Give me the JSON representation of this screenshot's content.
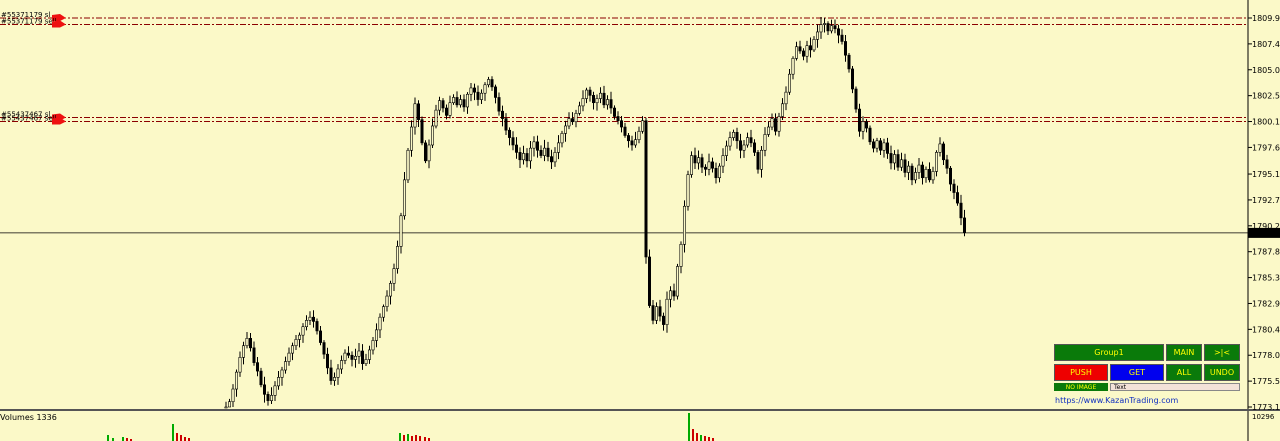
{
  "chart_data": {
    "type": "candlestick",
    "price_ticks": [
      "1809.92",
      "1807.47",
      "1805.02",
      "1802.57",
      "1800.12",
      "1797.67",
      "1795.15",
      "1792.70",
      "1790.25",
      "1787.80",
      "1785.35",
      "1782.90",
      "1780.45",
      "1778.00",
      "1775.55",
      "1773.10"
    ],
    "price_range": [
      1773.1,
      1809.92
    ],
    "current_price": "1789.58",
    "close_series": [
      1773.1,
      1773.6,
      1774.8,
      1776.4,
      1777.8,
      1778.9,
      1779.6,
      1778.7,
      1777.3,
      1776.5,
      1775.2,
      1774.3,
      1773.7,
      1774.2,
      1775.1,
      1775.9,
      1776.6,
      1777.4,
      1778.2,
      1778.9,
      1779.5,
      1779.9,
      1780.7,
      1781.3,
      1781.6,
      1781.2,
      1780.3,
      1779.2,
      1778.1,
      1776.8,
      1775.6,
      1775.9,
      1776.7,
      1777.5,
      1778.2,
      1778.0,
      1777.6,
      1777.9,
      1778.4,
      1777.2,
      1777.6,
      1778.5,
      1779.4,
      1780.4,
      1781.6,
      1782.6,
      1783.6,
      1784.8,
      1786.2,
      1788.3,
      1791.2,
      1794.6,
      1797.4,
      1799.6,
      1801.8,
      1800.3,
      1798.1,
      1796.4,
      1797.9,
      1799.7,
      1801.2,
      1802.1,
      1801.4,
      1800.7,
      1801.9,
      1802.4,
      1801.7,
      1802.2,
      1801.5,
      1802.7,
      1803.3,
      1802.9,
      1802.2,
      1802.8,
      1803.6,
      1804.1,
      1803.4,
      1802.4,
      1801.1,
      1800.4,
      1799.3,
      1798.6,
      1797.9,
      1797.2,
      1796.5,
      1797.1,
      1796.4,
      1797.6,
      1798.2,
      1797.4,
      1796.9,
      1797.6,
      1796.8,
      1796.3,
      1797.2,
      1798.1,
      1799.0,
      1799.7,
      1800.4,
      1800.1,
      1800.9,
      1801.6,
      1802.3,
      1803.1,
      1802.6,
      1801.9,
      1802.3,
      1802.8,
      1801.7,
      1802.2,
      1801.4,
      1800.6,
      1800.2,
      1799.6,
      1798.8,
      1798.3,
      1797.9,
      1798.4,
      1799.2,
      1800.2,
      1787.3,
      1782.7,
      1781.3,
      1782.6,
      1781.7,
      1780.9,
      1783.3,
      1784.1,
      1783.6,
      1786.4,
      1788.5,
      1792.1,
      1795.1,
      1796.9,
      1796.2,
      1796.7,
      1795.8,
      1795.6,
      1796.3,
      1795.7,
      1794.8,
      1795.9,
      1796.9,
      1797.8,
      1798.6,
      1799.1,
      1798.3,
      1797.4,
      1797.9,
      1798.6,
      1798.1,
      1797.2,
      1795.6,
      1797.4,
      1798.9,
      1799.6,
      1800.4,
      1799.2,
      1800.6,
      1801.8,
      1802.9,
      1804.6,
      1806.1,
      1807.2,
      1806.8,
      1806.3,
      1807.3,
      1806.9,
      1807.9,
      1808.6,
      1809.3,
      1809.4,
      1808.7,
      1809.2,
      1808.9,
      1808.3,
      1807.7,
      1806.4,
      1805.1,
      1803.2,
      1801.3,
      1799.2,
      1800.1,
      1799.5,
      1798.2,
      1797.6,
      1798.3,
      1797.4,
      1798.1,
      1797.1,
      1796.2,
      1797.0,
      1795.8,
      1796.5,
      1795.3,
      1795.9,
      1794.6,
      1795.3,
      1796.0,
      1794.8,
      1795.6,
      1794.6,
      1795.4,
      1797.2,
      1798.0,
      1796.5,
      1795.7,
      1794.2,
      1793.4,
      1792.4,
      1791.0,
      1789.6
    ],
    "volumes_label": "Volumes 1336",
    "volumes_scale": "10296",
    "orders": [
      {
        "label": "#55371179 sl",
        "price": 1809.92,
        "color": "#cc0000"
      },
      {
        "label": "#55371179 sell",
        "price": 1809.3,
        "color": "#cc0000"
      },
      {
        "label": "#55437467 sl",
        "price": 1800.5,
        "color": "#cc0000"
      },
      {
        "label": "#55437467 sell",
        "price": 1800.12,
        "color": "#cc0000"
      }
    ],
    "colors": {
      "background": "#fbf9c8",
      "candle": "#000000",
      "level_line": "#8b0000",
      "vol_up": "#00aa00",
      "vol_down": "#cc0000"
    }
  },
  "panel": {
    "group_label": "Group1",
    "main_label": "MAIN",
    "skip_label": ">|<",
    "push_label": "PUSH",
    "get_label": "GET",
    "all_label": "ALL",
    "undo_label": "UNDO",
    "noimage_label": "NO IMAGE",
    "text_label": "Text",
    "link": "https://www.KazanTrading.com"
  }
}
